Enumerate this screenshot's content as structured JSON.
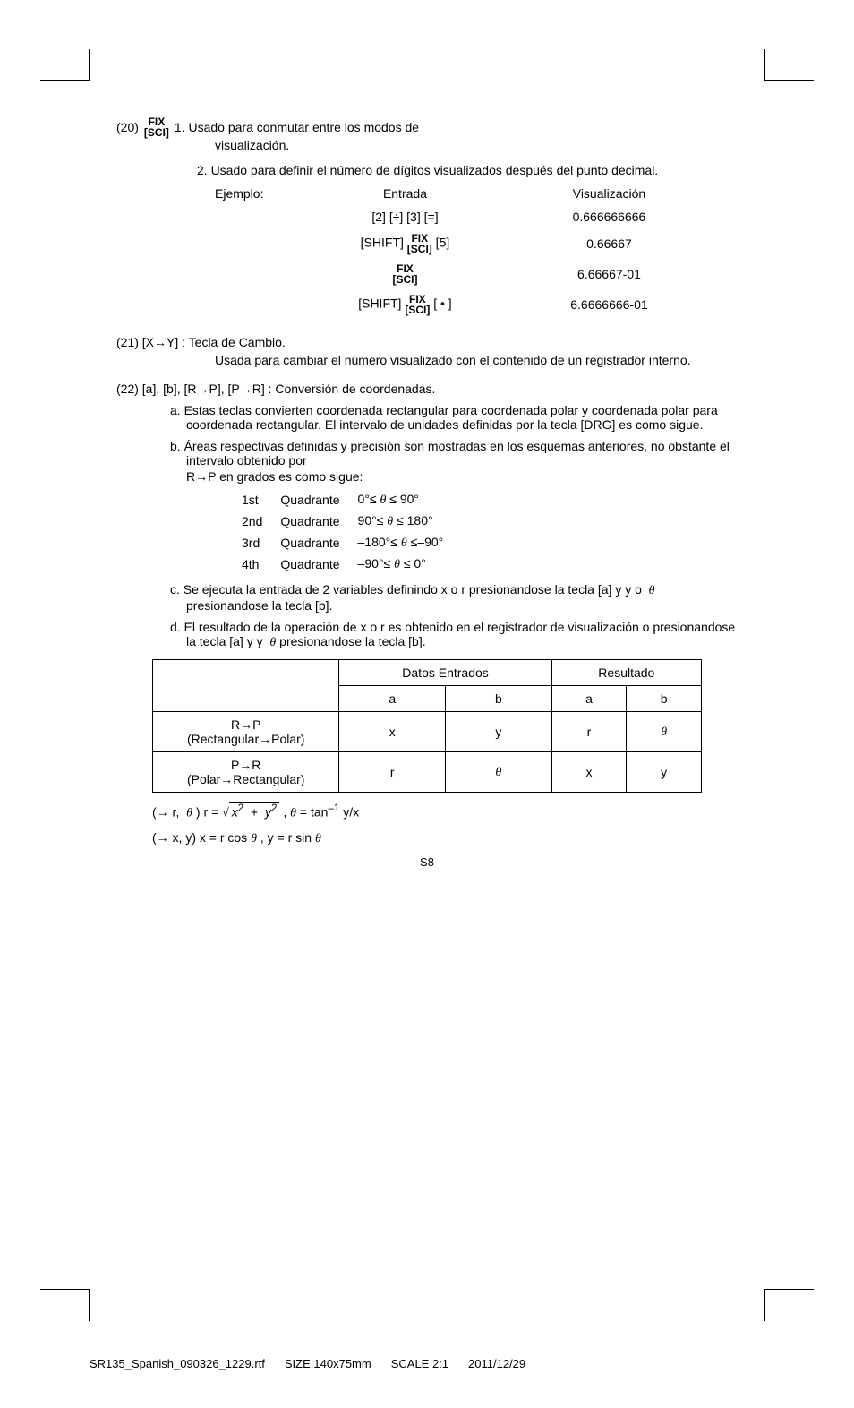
{
  "item20": {
    "num": "(20)",
    "fix": "FIX",
    "sci": "[SCI]",
    "desc1_line1": "1. Usado para conmutar entre los modos de",
    "desc1_line2": "visualización.",
    "desc2": "2. Usado para definir el número de dígitos visualizados después del punto decimal.",
    "example_label": "Ejemplo:",
    "header_entry": "Entrada",
    "header_vis": "Visualización",
    "rows": [
      {
        "entry_plain": "[2] [÷] [3] [=]",
        "vis": "0.666666666"
      },
      {
        "entry_pre": "[SHIFT] ",
        "entry_post": " [5]",
        "vis": "0.66667",
        "has_fix": true
      },
      {
        "entry_pre": "",
        "entry_post": "",
        "vis": "6.66667-01",
        "has_fix": true
      },
      {
        "entry_pre": "[SHIFT] ",
        "entry_post": " [ • ]",
        "vis": "6.6666666-01",
        "has_fix": true
      }
    ]
  },
  "item21": {
    "head": "(21) [X↔Y] : Tecla de Cambio.",
    "desc": "Usada para cambiar el número visualizado con el contenido de un registrador interno."
  },
  "item22": {
    "head": "(22) [a], [b], [R→P], [P→R] : Conversión de coordenadas.",
    "a": "a. Estas teclas convierten coordenada rectangular para coordenada polar y coordenada polar para coordenada rectangular. El intervalo de unidades definidas por la tecla [DRG] es como sigue.",
    "b_line1": "b. Áreas respectivas definidas y precisión son mostradas en los esquemas anteriores, no obstante el intervalo obtenido por",
    "b_line2": "R→P en grados es como sigue:",
    "quadrants": [
      {
        "n": "1st",
        "label": "Quadrante",
        "range": "0°≤ θ ≤ 90°"
      },
      {
        "n": "2nd",
        "label": "Quadrante",
        "range": "90°≤ θ ≤ 180°"
      },
      {
        "n": "3rd",
        "label": "Quadrante",
        "range": "–180°≤ θ ≤–90°"
      },
      {
        "n": "4th",
        "label": "Quadrante",
        "range": "–90°≤ θ ≤ 0°"
      }
    ],
    "c": "c. Se ejecuta la entrada de 2 variables definindo x o r presionandose la tecla [a] y y o  θ  presionandose la tecla [b].",
    "d": "d. El resultado de la operación de x o r es obtenido en el registrador de visualización o presionandose la tecla [a] y y  θ presionandose la tecla [b]."
  },
  "table": {
    "h_data": "Datos Entrados",
    "h_result": "Resultado",
    "a": "a",
    "b": "b",
    "row1_label1": "R→P",
    "row1_label2": "(Rectangular→Polar)",
    "row1": [
      "x",
      "y",
      "r",
      "θ"
    ],
    "row2_label1": "P→R",
    "row2_label2": "(Polar→Rectangular)",
    "row2": [
      "r",
      "θ",
      "x",
      "y"
    ]
  },
  "formulas": {
    "line1_pre": "(→ r,  θ ) r = ",
    "line1_sqrt_inner": "x",
    "line1_post": " , θ = tan",
    "line1_sup": "–1",
    "line1_end": " y/x",
    "line2": "(→ x, y) x = r cos θ , y = r sin θ"
  },
  "page_num": "-S8-",
  "footer": {
    "f1": "SR135_Spanish_090326_1229.rtf",
    "f2": "SIZE:140x75mm",
    "f3": "SCALE 2:1",
    "f4": "2011/12/29"
  }
}
